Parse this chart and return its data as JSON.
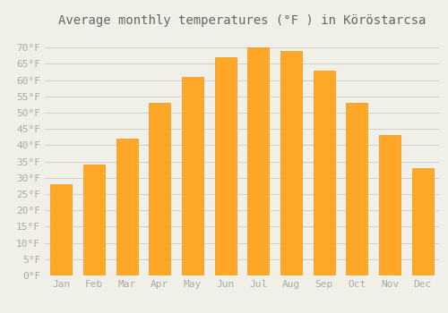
{
  "title": "Average monthly temperatures (°F ) in Köröstarcsa",
  "months": [
    "Jan",
    "Feb",
    "Mar",
    "Apr",
    "May",
    "Jun",
    "Jul",
    "Aug",
    "Sep",
    "Oct",
    "Nov",
    "Dec"
  ],
  "values": [
    28,
    34,
    42,
    53,
    61,
    67,
    70,
    69,
    63,
    53,
    43,
    33
  ],
  "bar_color": "#FFA726",
  "bar_edge_color": "#E8981A",
  "background_color": "#F0F0E8",
  "grid_color": "#CCCCCC",
  "ylim": [
    0,
    75
  ],
  "yticks": [
    0,
    5,
    10,
    15,
    20,
    25,
    30,
    35,
    40,
    45,
    50,
    55,
    60,
    65,
    70
  ],
  "title_fontsize": 10,
  "tick_fontsize": 8,
  "tick_color": "#AAAAAA",
  "title_color": "#666666"
}
